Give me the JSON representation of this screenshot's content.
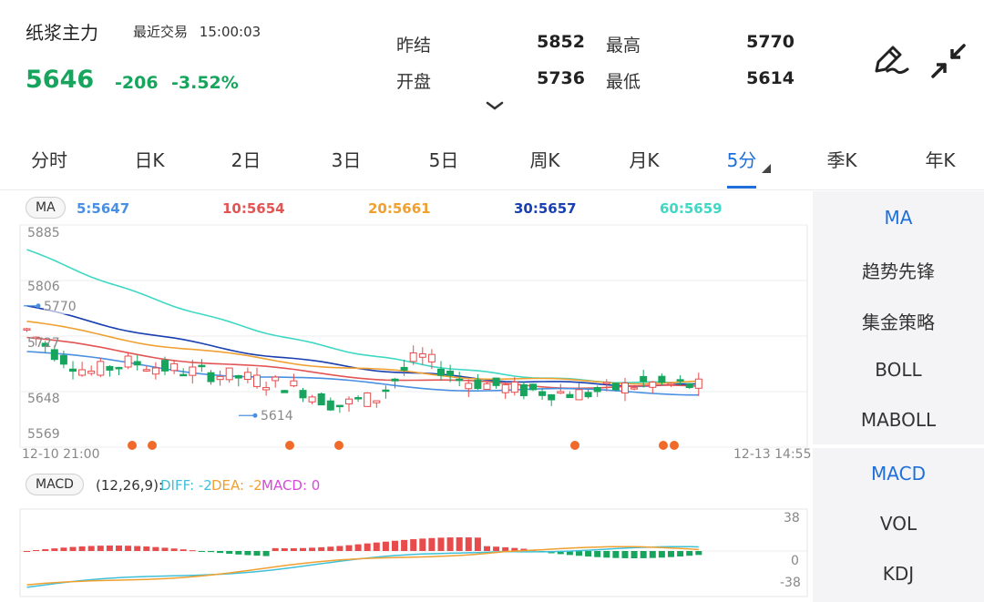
{
  "header": {
    "instrument": "纸浆主力",
    "status": "最近交易",
    "time": "15:00:03",
    "last_price": "5646",
    "change": "-206",
    "change_pct": "-3.52%",
    "stats": [
      {
        "label": "昨结",
        "value": "5852"
      },
      {
        "label": "最高",
        "value": "5770"
      },
      {
        "label": "开盘",
        "value": "5736"
      },
      {
        "label": "最低",
        "value": "5614"
      }
    ]
  },
  "tabs": [
    "分时",
    "日K",
    "2日",
    "3日",
    "5日",
    "周K",
    "月K",
    "5分",
    "季K",
    "年K"
  ],
  "active_tab": "5分",
  "ma_legend": {
    "chip": "MA",
    "ma5": "5:5647",
    "ma10": "10:5654",
    "ma20": "20:5661",
    "ma30": "30:5657",
    "ma60": "60:5659"
  },
  "price_axis": [
    "5885",
    "5806",
    "5727",
    "5648",
    "5569"
  ],
  "annotations": {
    "high": "5770",
    "low": "5614"
  },
  "time_axis": {
    "start": "12-10 21:00",
    "end": "12-13 14:55"
  },
  "macd_legend": {
    "chip": "MACD",
    "params": "(12,26,9):",
    "diff": "DIFF: -2",
    "dea": "DEA: -2",
    "macd": "MACD: 0"
  },
  "macd_axis": [
    "38",
    "0",
    "-38"
  ],
  "main_indicators": [
    "MA",
    "趋势先锋",
    "集金策略",
    "BOLL",
    "MABOLL"
  ],
  "sub_indicators": [
    "MACD",
    "VOL",
    "KDJ"
  ],
  "colors": {
    "up": "#e84b4b",
    "down": "#17a55e",
    "active": "#1e6fd9",
    "ma5": "#4a90e2",
    "ma10": "#e25555",
    "ma20": "#f0a030",
    "ma30": "#1a3fb0",
    "ma60": "#3fd8c4"
  }
}
